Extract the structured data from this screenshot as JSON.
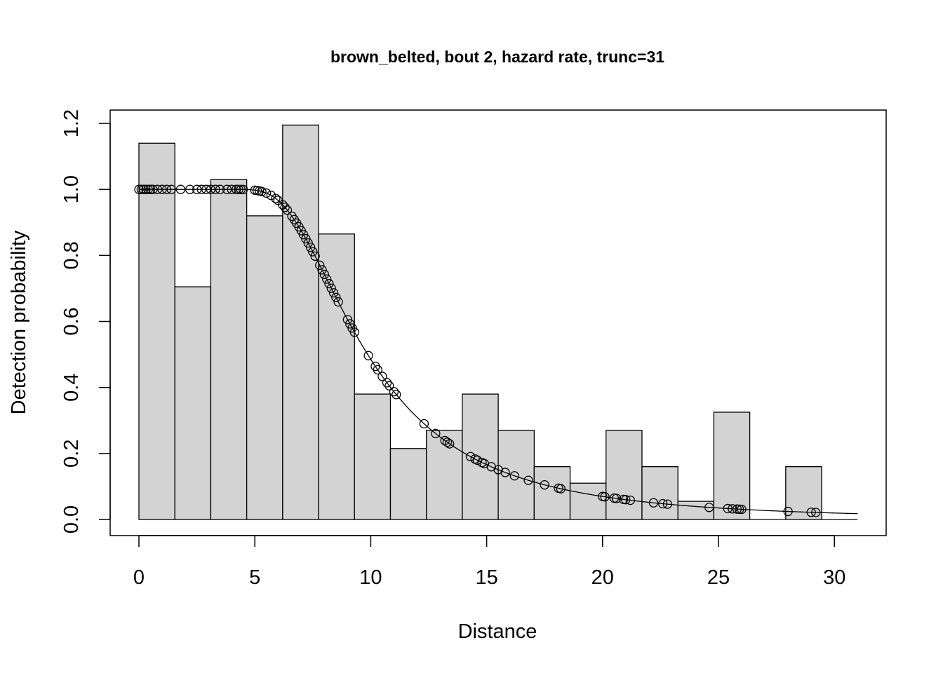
{
  "chart_data": {
    "type": "bar",
    "title": "brown_belted, bout 2, hazard rate, trunc=31",
    "xlabel": "Distance",
    "ylabel": "Detection probability",
    "xlim": [
      0,
      31
    ],
    "ylim": [
      0,
      1.2
    ],
    "x_ticks": [
      "0",
      "5",
      "10",
      "15",
      "20",
      "25",
      "30"
    ],
    "y_ticks": [
      "0.0",
      "0.2",
      "0.4",
      "0.6",
      "0.8",
      "1.0",
      "1.2"
    ],
    "histogram": {
      "bin_edges": [
        0,
        1.55,
        3.1,
        4.65,
        6.2,
        7.75,
        9.3,
        10.85,
        12.4,
        13.95,
        15.5,
        17.05,
        18.6,
        20.15,
        21.7,
        23.25,
        24.8,
        26.35,
        27.9,
        29.45,
        31
      ],
      "heights": [
        1.14,
        0.705,
        1.03,
        0.92,
        1.195,
        0.865,
        0.38,
        0.215,
        0.27,
        0.38,
        0.27,
        0.16,
        0.11,
        0.27,
        0.16,
        0.055,
        0.325,
        0,
        0.16,
        0
      ],
      "fill": "#d3d3d3"
    },
    "fitted_curve": {
      "model": "hazard rate",
      "sigma": 8.8,
      "b": 3.2,
      "x_range": [
        0,
        31
      ]
    },
    "observations": [
      0,
      0.1,
      0.2,
      0.3,
      0.4,
      0.5,
      0.6,
      0.8,
      1.0,
      1.2,
      1.4,
      1.8,
      2.2,
      2.5,
      2.7,
      2.9,
      3.1,
      3.3,
      3.5,
      3.8,
      4.0,
      4.2,
      4.3,
      4.4,
      4.5,
      5.0,
      5.1,
      5.2,
      5.3,
      5.5,
      5.7,
      5.9,
      6.0,
      6.2,
      6.3,
      6.4,
      6.6,
      6.7,
      6.8,
      6.9,
      7.0,
      7.1,
      7.2,
      7.3,
      7.4,
      7.5,
      7.6,
      7.8,
      7.9,
      8.0,
      8.1,
      8.2,
      8.3,
      8.4,
      8.5,
      8.6,
      9.0,
      9.1,
      9.2,
      9.3,
      9.9,
      10.2,
      10.3,
      10.5,
      10.7,
      10.8,
      11.0,
      11.1,
      12.3,
      12.8,
      13.2,
      13.3,
      13.4,
      14.3,
      14.5,
      14.6,
      14.8,
      14.9,
      15.2,
      15.5,
      15.8,
      16.2,
      16.8,
      17.5,
      18.1,
      18.2,
      20.0,
      20.1,
      20.5,
      20.6,
      20.9,
      21.0,
      21.2,
      22.2,
      22.6,
      22.8,
      24.6,
      25.4,
      25.6,
      25.8,
      25.9,
      26.0,
      28.0,
      29.0,
      29.2
    ]
  }
}
